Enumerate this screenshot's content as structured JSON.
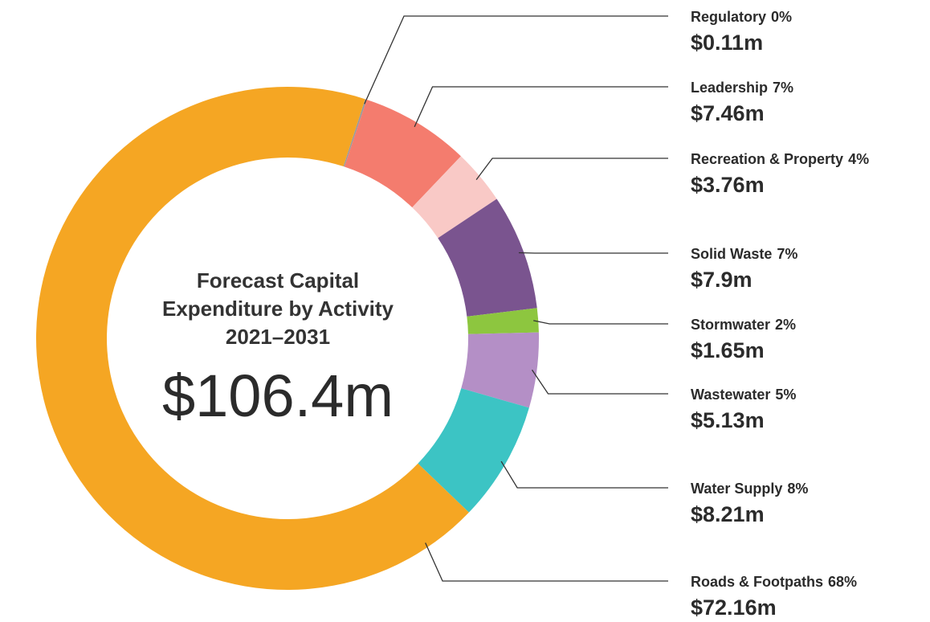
{
  "chart_data": {
    "type": "donut",
    "title_lines": [
      "Forecast Capital",
      "Expenditure by Activity",
      "2021–2031"
    ],
    "center_label": "$106.4m",
    "categories": [
      "Regulatory",
      "Leadership",
      "Recreation & Property",
      "Solid Waste",
      "Stormwater",
      "Wastewater",
      "Water Supply",
      "Roads & Footpaths"
    ],
    "percent_labels": [
      "0%",
      "7%",
      "4%",
      "7%",
      "2%",
      "5%",
      "8%",
      "68%"
    ],
    "values": [
      0.11,
      7.46,
      3.76,
      7.9,
      1.65,
      5.13,
      8.21,
      72.16
    ],
    "value_labels": [
      "$0.11m",
      "$7.46m",
      "$3.76m",
      "$7.9m",
      "$1.65m",
      "$5.13m",
      "$8.21m",
      "$72.16m"
    ],
    "colors": [
      "#9a9a9a",
      "#f47c6e",
      "#f9c9c6",
      "#7a548f",
      "#8dc63f",
      "#b48fc6",
      "#3cc4c4",
      "#f5a623"
    ]
  }
}
